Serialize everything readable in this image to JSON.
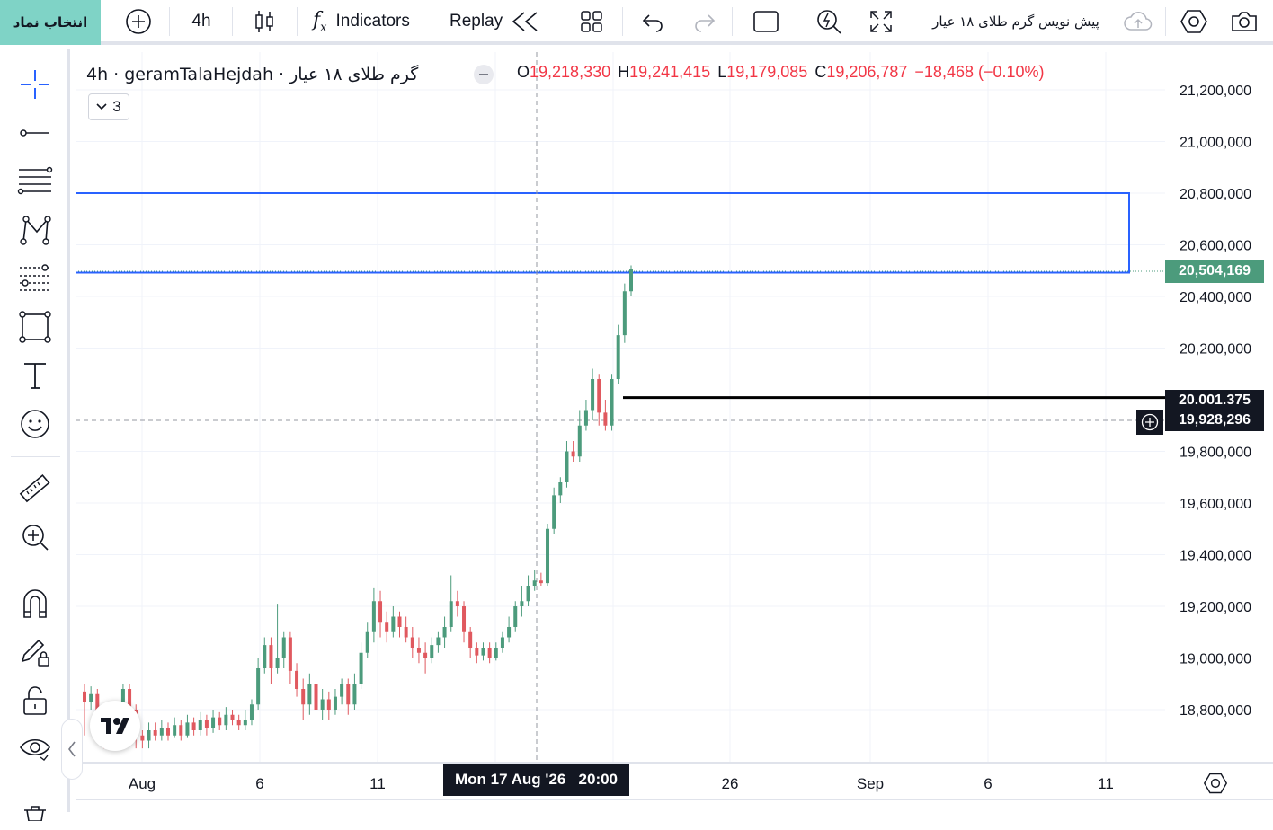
{
  "toolbar": {
    "symbol_button": "انتخاب نماد",
    "interval": "4h",
    "indicators_label": "Indicators",
    "replay_label": "Replay",
    "layout_name": "پیش نویس گرم طلای ۱۸ عیار"
  },
  "legend": {
    "title": "گرم طلای ۱۸ عیار · 4h · geramTalaHejdah",
    "open_key": "O",
    "open": "19,218,330",
    "high_key": "H",
    "high": "19,241,415",
    "low_key": "L",
    "low": "19,179,085",
    "close_key": "C",
    "close": "19,206,787",
    "change": "−18,468 (−0.10%)",
    "indicator_count": "3"
  },
  "colors": {
    "up": "#4c9b7c",
    "down": "#e0595f",
    "accent": "#2962ff",
    "last_price_bg": "#4c9b7c",
    "crosshair_bg": "#131722"
  },
  "price_axis": {
    "ticks": [
      "21,200,000",
      "21,000,000",
      "20,800,000",
      "20,600,000",
      "20,400,000",
      "20,200,000",
      "19,800,000",
      "19,600,000",
      "19,400,000",
      "19,200,000",
      "19,000,000",
      "18,800,000"
    ],
    "last_price": "20,504,169",
    "hline_price": "20.001.375",
    "crosshair_price": "19,928,296"
  },
  "time_axis": {
    "labels": [
      "Aug",
      "6",
      "11",
      "26",
      "Sep",
      "6",
      "11"
    ],
    "crosshair_time": "Mon 17 Aug '26   20:00"
  },
  "chart_data": {
    "type": "candlestick",
    "ylim": [
      18650000,
      21350000
    ],
    "rectangle": {
      "top": 20800000,
      "bottom": 20520000
    },
    "hline": 20001375,
    "candles": [
      [
        18870000,
        18830000,
        18900000,
        18700000
      ],
      [
        18830000,
        18860000,
        18890000,
        18800000
      ],
      [
        18860000,
        18780000,
        18880000,
        18720000
      ],
      [
        18780000,
        18700000,
        18800000,
        18650000
      ],
      [
        18700000,
        18750000,
        18780000,
        18650000
      ],
      [
        18750000,
        18700000,
        18770000,
        18650000
      ],
      [
        18700000,
        18880000,
        18900000,
        18680000
      ],
      [
        18880000,
        18800000,
        18900000,
        18700000
      ],
      [
        18800000,
        18700000,
        18820000,
        18650000
      ],
      [
        18700000,
        18680000,
        18720000,
        18650000
      ],
      [
        18680000,
        18720000,
        18750000,
        18650000
      ],
      [
        18720000,
        18700000,
        18750000,
        18680000
      ],
      [
        18700000,
        18730000,
        18760000,
        18680000
      ],
      [
        18730000,
        18700000,
        18750000,
        18680000
      ],
      [
        18700000,
        18740000,
        18770000,
        18690000
      ],
      [
        18740000,
        18700000,
        18760000,
        18680000
      ],
      [
        18700000,
        18750000,
        18780000,
        18690000
      ],
      [
        18750000,
        18720000,
        18770000,
        18700000
      ],
      [
        18720000,
        18760000,
        18790000,
        18700000
      ],
      [
        18760000,
        18730000,
        18780000,
        18700000
      ],
      [
        18730000,
        18770000,
        18800000,
        18710000
      ],
      [
        18770000,
        18740000,
        18790000,
        18720000
      ],
      [
        18740000,
        18780000,
        18810000,
        18720000
      ],
      [
        18780000,
        18760000,
        18800000,
        18740000
      ],
      [
        18760000,
        18740000,
        18780000,
        18720000
      ],
      [
        18740000,
        18760000,
        18800000,
        18720000
      ],
      [
        18760000,
        18820000,
        18840000,
        18740000
      ],
      [
        18820000,
        18960000,
        19000000,
        18800000
      ],
      [
        18960000,
        19050000,
        19080000,
        18940000
      ],
      [
        19050000,
        18960000,
        19080000,
        18900000
      ],
      [
        18960000,
        19000000,
        19210000,
        18940000
      ],
      [
        19000000,
        19080000,
        19100000,
        18960000
      ],
      [
        19080000,
        18950000,
        19100000,
        18900000
      ],
      [
        18950000,
        18880000,
        18980000,
        18850000
      ],
      [
        18880000,
        18820000,
        18920000,
        18760000
      ],
      [
        18820000,
        18900000,
        18940000,
        18780000
      ],
      [
        18900000,
        18800000,
        18960000,
        18720000
      ],
      [
        18800000,
        18840000,
        18880000,
        18760000
      ],
      [
        18840000,
        18800000,
        18870000,
        18760000
      ],
      [
        18800000,
        18850000,
        18880000,
        18780000
      ],
      [
        18850000,
        18900000,
        18920000,
        18820000
      ],
      [
        18900000,
        18820000,
        18920000,
        18780000
      ],
      [
        18820000,
        18900000,
        18940000,
        18800000
      ],
      [
        18900000,
        19020000,
        19060000,
        18880000
      ],
      [
        19020000,
        19100000,
        19140000,
        19000000
      ],
      [
        19100000,
        19220000,
        19270000,
        19060000
      ],
      [
        19220000,
        19140000,
        19260000,
        19080000
      ],
      [
        19140000,
        19100000,
        19180000,
        19060000
      ],
      [
        19100000,
        19160000,
        19200000,
        19080000
      ],
      [
        19160000,
        19120000,
        19180000,
        19080000
      ],
      [
        19120000,
        19080000,
        19160000,
        19060000
      ],
      [
        19080000,
        19040000,
        19120000,
        19000000
      ],
      [
        19040000,
        19020000,
        19080000,
        18980000
      ],
      [
        19020000,
        19000000,
        19060000,
        18940000
      ],
      [
        19000000,
        19050000,
        19080000,
        18980000
      ],
      [
        19050000,
        19080000,
        19100000,
        19020000
      ],
      [
        19080000,
        19120000,
        19160000,
        19040000
      ],
      [
        19120000,
        19220000,
        19320000,
        19100000
      ],
      [
        19220000,
        19200000,
        19260000,
        19160000
      ],
      [
        19200000,
        19100000,
        19220000,
        19060000
      ],
      [
        19100000,
        19040000,
        19120000,
        19000000
      ],
      [
        19040000,
        19010000,
        19060000,
        18980000
      ],
      [
        19010000,
        19040000,
        19060000,
        18990000
      ],
      [
        19040000,
        19000000,
        19060000,
        18980000
      ],
      [
        19000000,
        19040000,
        19060000,
        18990000
      ],
      [
        19040000,
        19080000,
        19100000,
        19020000
      ],
      [
        19080000,
        19120000,
        19160000,
        19060000
      ],
      [
        19120000,
        19200000,
        19220000,
        19100000
      ],
      [
        19200000,
        19220000,
        19280000,
        19160000
      ],
      [
        19220000,
        19280000,
        19320000,
        19200000
      ],
      [
        19280000,
        19300000,
        19340000,
        19260000
      ],
      [
        19300000,
        19290000,
        19330000,
        19280000
      ],
      [
        19290000,
        19500000,
        19520000,
        19280000
      ],
      [
        19500000,
        19630000,
        19660000,
        19480000
      ],
      [
        19630000,
        19680000,
        19700000,
        19600000
      ],
      [
        19680000,
        19800000,
        19840000,
        19660000
      ],
      [
        19800000,
        19780000,
        19840000,
        19760000
      ],
      [
        19780000,
        19900000,
        19960000,
        19760000
      ],
      [
        19900000,
        19960000,
        20000000,
        19880000
      ],
      [
        19960000,
        20080000,
        20120000,
        19920000
      ],
      [
        20080000,
        19950000,
        20100000,
        19900000
      ],
      [
        19950000,
        19900000,
        20000000,
        19880000
      ],
      [
        19900000,
        20080000,
        20100000,
        19880000
      ],
      [
        20080000,
        20250000,
        20290000,
        20060000
      ],
      [
        20250000,
        20420000,
        20450000,
        20220000
      ],
      [
        20420000,
        20504169,
        20520000,
        20400000
      ]
    ]
  }
}
